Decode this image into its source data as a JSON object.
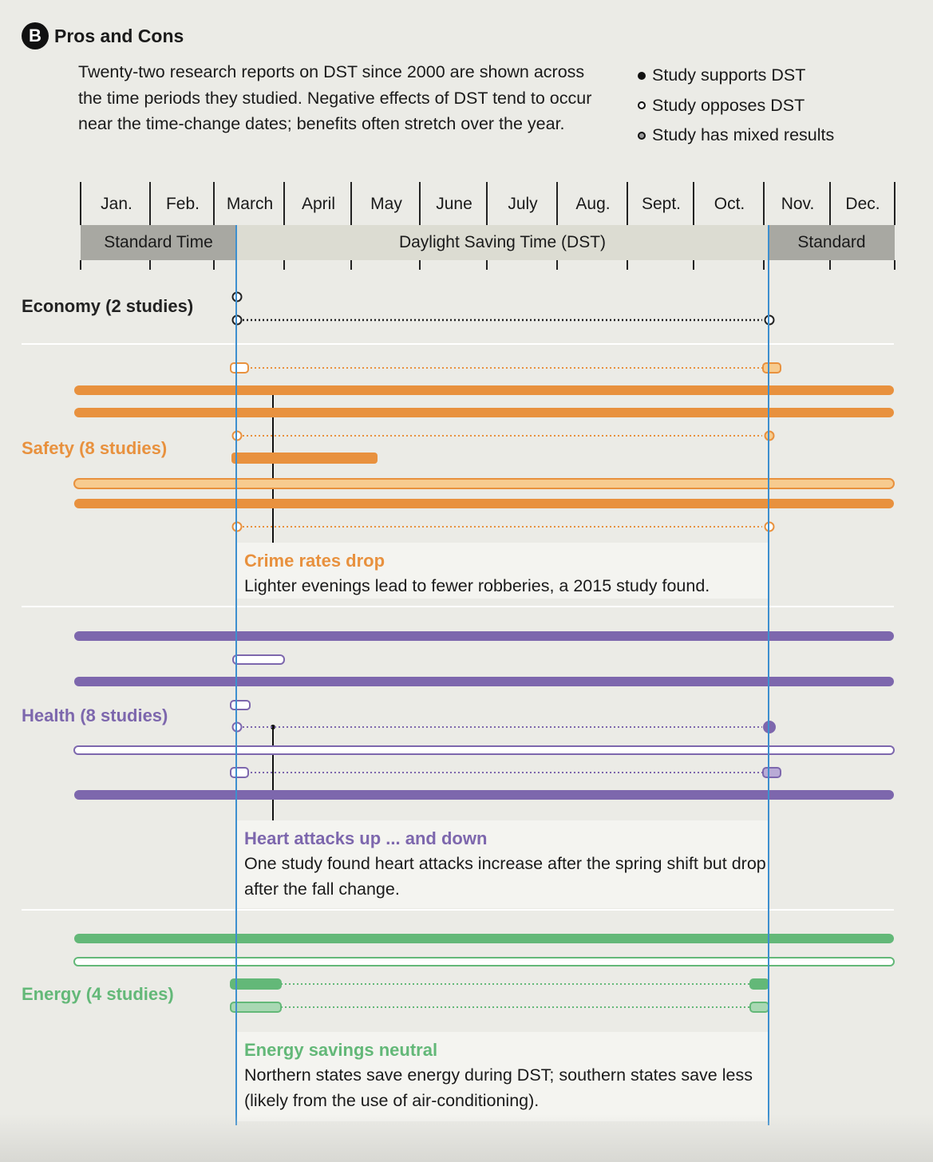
{
  "header": {
    "badge": "B",
    "title": "Pros and Cons"
  },
  "intro": "Twenty-two research reports on DST since 2000 are shown across the time periods they studied. Negative effects of DST tend to occur near the time-change dates; benefits often stretch over the year.",
  "legend": [
    {
      "kind": "supports",
      "label": "Study supports DST"
    },
    {
      "kind": "opposes",
      "label": "Study opposes DST"
    },
    {
      "kind": "mixed",
      "label": "Study has mixed results"
    }
  ],
  "months": [
    "Jan.",
    "Feb.",
    "March",
    "April",
    "May",
    "June",
    "July",
    "Aug.",
    "Sept.",
    "Oct.",
    "Nov.",
    "Dec."
  ],
  "periods": [
    {
      "label": "Standard Time",
      "type": "std"
    },
    {
      "label": "Daylight Saving Time (DST)",
      "type": "dst"
    },
    {
      "label": "Standard",
      "type": "std"
    }
  ],
  "colors": {
    "economy": "#222222",
    "safety": "#e8913e",
    "safety_light": "#f7cb8f",
    "health": "#7d67ad",
    "health_light": "#b9abd6",
    "energy": "#63b878",
    "energy_light": "#a9d8b3",
    "time_change_line": "#3d8fcf"
  },
  "categories": [
    {
      "id": "economy",
      "label": "Economy (2 studies)"
    },
    {
      "id": "safety",
      "label": "Safety (8 studies)"
    },
    {
      "id": "health",
      "label": "Health (8 studies)"
    },
    {
      "id": "energy",
      "label": "Energy (4 studies)"
    }
  ],
  "notes": [
    {
      "id": "safety",
      "title": "Crime rates drop",
      "body": "Lighter evenings lead to fewer robberies, a 2015 study found."
    },
    {
      "id": "health",
      "title": "Heart attacks up ... and down",
      "body": "One study found heart attacks increase after the spring shift but drop after the fall change."
    },
    {
      "id": "energy",
      "title": "Energy savings neutral",
      "body": "Northern states save energy during DST; southern states save less (likely from the use of air-conditioning)."
    }
  ],
  "studies": [
    {
      "category": "economy",
      "kind": "point",
      "at": "spring",
      "result": "opposes"
    },
    {
      "category": "economy",
      "kind": "pair",
      "result": "opposes"
    },
    {
      "category": "safety",
      "kind": "pair",
      "result": "opposes",
      "fill": "mixed-fall"
    },
    {
      "category": "safety",
      "kind": "year",
      "result": "supports"
    },
    {
      "category": "safety",
      "kind": "year",
      "result": "supports"
    },
    {
      "category": "safety",
      "kind": "pair",
      "result": "opposes",
      "fill": "mixed-fall"
    },
    {
      "category": "safety",
      "kind": "span",
      "start": "March",
      "end": "May",
      "result": "supports"
    },
    {
      "category": "safety",
      "kind": "year",
      "result": "mixed"
    },
    {
      "category": "safety",
      "kind": "year",
      "result": "supports"
    },
    {
      "category": "safety",
      "kind": "pair",
      "result": "opposes"
    },
    {
      "category": "health",
      "kind": "year",
      "result": "supports"
    },
    {
      "category": "health",
      "kind": "span",
      "start": "March",
      "end": "April",
      "result": "opposes"
    },
    {
      "category": "health",
      "kind": "year",
      "result": "supports"
    },
    {
      "category": "health",
      "kind": "point",
      "at": "spring",
      "result": "opposes"
    },
    {
      "category": "health",
      "kind": "pair",
      "result": "opposes",
      "fill": "supports-fall"
    },
    {
      "category": "health",
      "kind": "year",
      "result": "opposes"
    },
    {
      "category": "health",
      "kind": "pair",
      "result": "opposes",
      "fill": "mixed-fall"
    },
    {
      "category": "health",
      "kind": "year",
      "result": "supports"
    },
    {
      "category": "energy",
      "kind": "year",
      "result": "supports"
    },
    {
      "category": "energy",
      "kind": "year",
      "result": "opposes"
    },
    {
      "category": "energy",
      "kind": "pair",
      "result": "supports"
    },
    {
      "category": "energy",
      "kind": "pair",
      "result": "mixed"
    }
  ]
}
